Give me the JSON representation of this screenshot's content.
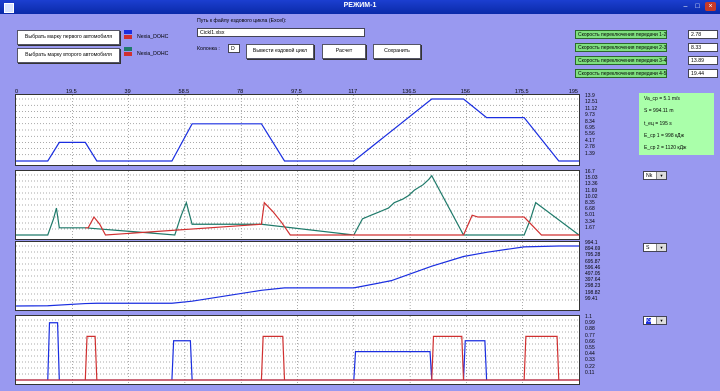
{
  "window": {
    "title": "РЕЖИМ-1",
    "min": "–",
    "max": "□",
    "close": "×"
  },
  "controls": {
    "btn_car1": "Выбрать марку первого автомобиля",
    "btn_car2": "Выбрать марку второго автомобиля",
    "car1_name": "Nexia_DOHC",
    "car2_name": "Nexia_DOHC",
    "car1_colors": [
      "#1a2ee0",
      "#3a3aa0"
    ],
    "car2_colors": [
      "#1f7a6a",
      "#d03030"
    ],
    "path_label": "Путь к файлу ездового цикла (Excel):",
    "path_value": "Cickl1.xlsx",
    "column_label": "Колонка :",
    "column_value": "D",
    "btn_show_cycle": "Вывести ездовой цикл",
    "btn_calc": "Расчет",
    "btn_save": "Сохранить"
  },
  "gears": [
    {
      "label": "Скорость переключения передачи 1-2",
      "value": "2.78"
    },
    {
      "label": "Скорость переключения передачи 2-3",
      "value": "8.33"
    },
    {
      "label": "Скорость переключения передачи 3-4",
      "value": "13.89"
    },
    {
      "label": "Скорость переключения передачи 4-5",
      "value": "19.44"
    }
  ],
  "results": {
    "va": "Va_cp = 5.1 m/s",
    "s": "S = 994.11 m",
    "t": "t_ец = 195 s",
    "e1": "E_cp 1 = 998 кДж",
    "e2": "E_cp 2 = 1120 кДж"
  },
  "x_ticks": [
    "0",
    "19.5",
    "39",
    "58.5",
    "78",
    "97.5",
    "117",
    "136.5",
    "156",
    "175.5",
    "195"
  ],
  "y_labels": {
    "p1": [
      "13.9",
      "12.51",
      "11.12",
      "9.73",
      "8.34",
      "6.95",
      "5.56",
      "4.17",
      "2.78",
      "1.39"
    ],
    "p2": [
      "16.7",
      "15.03",
      "13.36",
      "11.69",
      "10.02",
      "8.35",
      "6.68",
      "5.01",
      "3.34",
      "1.67"
    ],
    "p3": [
      "994.1",
      "894.69",
      "795.28",
      "695.87",
      "596.46",
      "497.05",
      "397.64",
      "298.23",
      "198.82",
      "99.41"
    ],
    "p4": [
      "1.1",
      "0.99",
      "0.88",
      "0.77",
      "0.66",
      "0.55",
      "0.44",
      "0.33",
      "0.22",
      "0.11"
    ]
  },
  "selectors": {
    "p2": "Nk",
    "p3": "S",
    "p4": "Кз"
  },
  "chart_data": [
    {
      "type": "line",
      "xlim": [
        0,
        195
      ],
      "ylim": [
        0,
        13.9
      ],
      "series": [
        {
          "color": "#1a2ee0",
          "x": [
            0,
            11,
            15,
            24,
            28,
            54,
            61,
            85,
            93,
            117,
            144,
            155,
            163,
            176,
            188,
            195
          ],
          "y": [
            0,
            0,
            4.17,
            4.17,
            0,
            0,
            8.34,
            8.34,
            0,
            0,
            13.9,
            13.9,
            9.73,
            9.73,
            0,
            0
          ]
        }
      ]
    },
    {
      "type": "line",
      "xlim": [
        0,
        195
      ],
      "ylim": [
        0,
        16.7
      ],
      "series": [
        {
          "color": "#1f7a6a",
          "x": [
            0,
            11,
            13,
            14,
            15,
            24,
            55,
            57,
            59,
            61,
            85,
            117,
            120,
            123,
            126,
            129,
            131,
            134,
            136,
            138,
            141,
            143,
            144,
            155,
            160,
            163,
            176,
            178,
            180,
            195
          ],
          "y": [
            0,
            0,
            4.5,
            7.5,
            2,
            2,
            0,
            5,
            9,
            3,
            3,
            0,
            4.5,
            5.5,
            6.5,
            7.5,
            9,
            10,
            11,
            12.5,
            14,
            15.5,
            16.5,
            0,
            0,
            0,
            0,
            4,
            9,
            0
          ]
        },
        {
          "color": "#d03030",
          "x": [
            24,
            25,
            27,
            29,
            31,
            85,
            86,
            89,
            92,
            95,
            144,
            150,
            155,
            158,
            160,
            163,
            176,
            182,
            184,
            186,
            188,
            195
          ],
          "y": [
            2,
            2,
            5,
            3,
            0,
            3,
            9,
            6.5,
            3.5,
            0,
            0,
            0,
            0,
            5.5,
            5,
            5,
            5,
            0,
            0,
            0,
            0,
            0
          ]
        }
      ]
    },
    {
      "type": "line",
      "xlim": [
        0,
        195
      ],
      "ylim": [
        0,
        994.1
      ],
      "series": [
        {
          "color": "#1a2ee0",
          "x": [
            0,
            11,
            24,
            28,
            54,
            61,
            85,
            93,
            117,
            130,
            144,
            155,
            163,
            176,
            188,
            195
          ],
          "y": [
            0,
            4,
            40,
            45,
            45,
            80,
            260,
            300,
            300,
            420,
            660,
            820,
            890,
            980,
            994.1,
            994.1
          ]
        }
      ]
    },
    {
      "type": "line",
      "xlim": [
        0,
        195
      ],
      "ylim": [
        0,
        1.1
      ],
      "series": [
        {
          "color": "#1a2ee0",
          "segments": [
            [
              11,
              15,
              1.05
            ],
            [
              54,
              61,
              0.72
            ],
            [
              117,
              144,
              0.52
            ],
            [
              155,
              163,
              0.72
            ]
          ]
        },
        {
          "color": "#d03030",
          "segments": [
            [
              24,
              28,
              0.8
            ],
            [
              85,
              93,
              0.8
            ],
            [
              144,
              155,
              0.8
            ],
            [
              176,
              188,
              0.8
            ]
          ]
        }
      ]
    }
  ]
}
